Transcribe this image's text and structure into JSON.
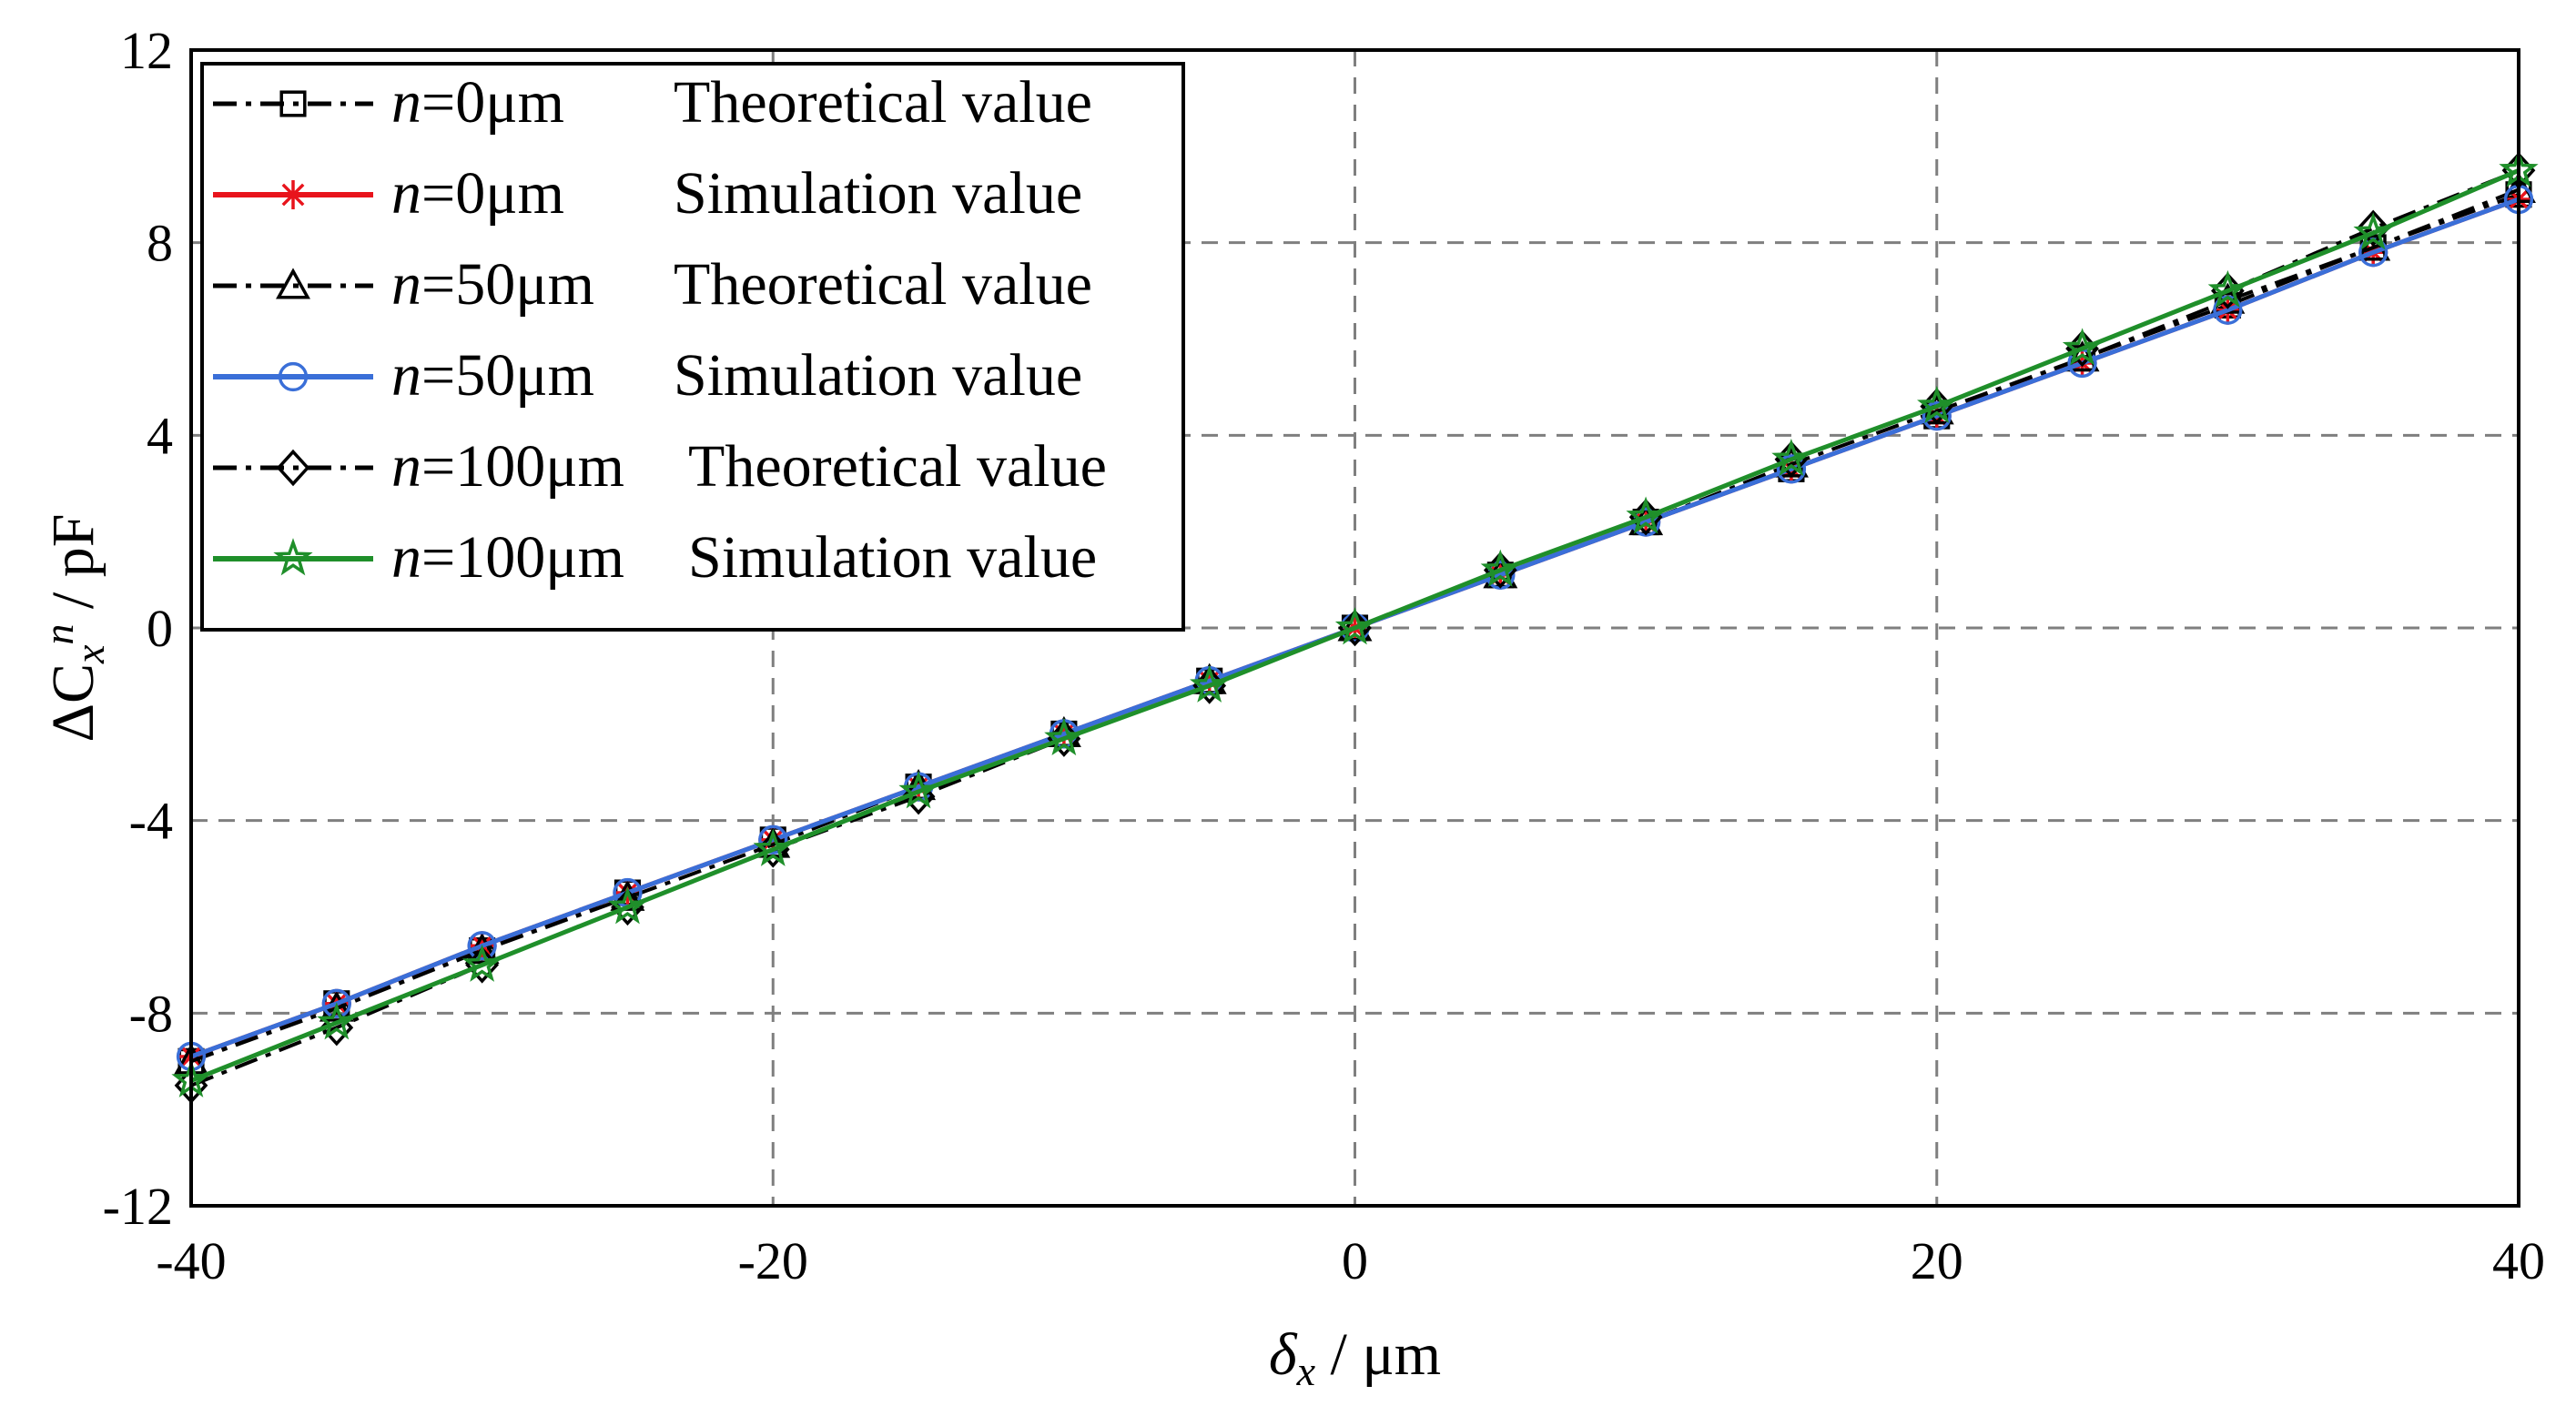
{
  "chart_data": {
    "type": "line",
    "xlabel": "δx / μm",
    "xlabel_parts": {
      "sym": "δ",
      "sub": "x",
      "rest": " / μm"
    },
    "ylabel": "ΔCxn / pF",
    "ylabel_parts": {
      "pre": "ΔC",
      "sub": "x",
      "sup": "n",
      "rest": " / pF"
    },
    "xlim": [
      -40,
      40
    ],
    "ylim": [
      -12,
      12
    ],
    "xticks": [
      -40,
      -20,
      0,
      20,
      40
    ],
    "yticks": [
      -12,
      -8,
      -4,
      0,
      4,
      8,
      12
    ],
    "grid": true,
    "legend_position": "top-left",
    "x": [
      -40,
      -35,
      -30,
      -25,
      -20,
      -15,
      -10,
      -5,
      0,
      5,
      10,
      15,
      20,
      25,
      30,
      35,
      40
    ],
    "series": [
      {
        "name": "n=0μm Theoretical value",
        "n_label": "n",
        "value_label": "=0μm",
        "kind_label": "Theoretical value",
        "color": "#000000",
        "line": "dashdot",
        "marker": "square",
        "values": [
          -9.0,
          -7.8,
          -6.7,
          -5.5,
          -4.4,
          -3.3,
          -2.2,
          -1.1,
          0,
          1.1,
          2.2,
          3.3,
          4.4,
          5.6,
          6.7,
          7.9,
          9.0
        ]
      },
      {
        "name": "n=0μm Simulation value",
        "n_label": "n",
        "value_label": "=0μm",
        "kind_label": "Simulation value",
        "color": "#e8141c",
        "line": "solid",
        "marker": "asterisk",
        "values": [
          -8.9,
          -7.8,
          -6.6,
          -5.5,
          -4.4,
          -3.3,
          -2.2,
          -1.1,
          0,
          1.1,
          2.2,
          3.3,
          4.4,
          5.5,
          6.6,
          7.8,
          8.9
        ]
      },
      {
        "name": "n=50μm Theoretical value",
        "n_label": "n",
        "value_label": "=50μm",
        "kind_label": "Theoretical value",
        "color": "#000000",
        "line": "dashdot",
        "marker": "triangle",
        "values": [
          -9.0,
          -7.9,
          -6.7,
          -5.6,
          -4.5,
          -3.3,
          -2.2,
          -1.1,
          0,
          1.1,
          2.2,
          3.4,
          4.5,
          5.6,
          6.8,
          7.9,
          9.1
        ]
      },
      {
        "name": "n=50μm Simulation value",
        "n_label": "n",
        "value_label": "=50μm",
        "kind_label": "Simulation value",
        "color": "#3a6fd8",
        "line": "solid",
        "marker": "circle",
        "values": [
          -8.9,
          -7.8,
          -6.6,
          -5.5,
          -4.4,
          -3.3,
          -2.2,
          -1.1,
          0,
          1.1,
          2.2,
          3.3,
          4.4,
          5.5,
          6.6,
          7.8,
          8.9
        ]
      },
      {
        "name": "n=100μm Theoretical value",
        "n_label": "n",
        "value_label": "=100μm",
        "kind_label": "Theoretical value",
        "color": "#000000",
        "line": "dashdot",
        "marker": "diamond",
        "values": [
          -9.5,
          -8.3,
          -7.0,
          -5.8,
          -4.6,
          -3.5,
          -2.3,
          -1.2,
          0,
          1.2,
          2.3,
          3.5,
          4.6,
          5.8,
          7.0,
          8.3,
          9.5
        ]
      },
      {
        "name": "n=100μm Simulation value",
        "n_label": "n",
        "value_label": "=100μm",
        "kind_label": "Simulation value",
        "color": "#1f8f2a",
        "line": "solid",
        "marker": "star",
        "values": [
          -9.4,
          -8.2,
          -7.0,
          -5.8,
          -4.6,
          -3.4,
          -2.3,
          -1.2,
          0,
          1.2,
          2.3,
          3.5,
          4.6,
          5.8,
          7.0,
          8.2,
          9.5
        ]
      }
    ]
  }
}
